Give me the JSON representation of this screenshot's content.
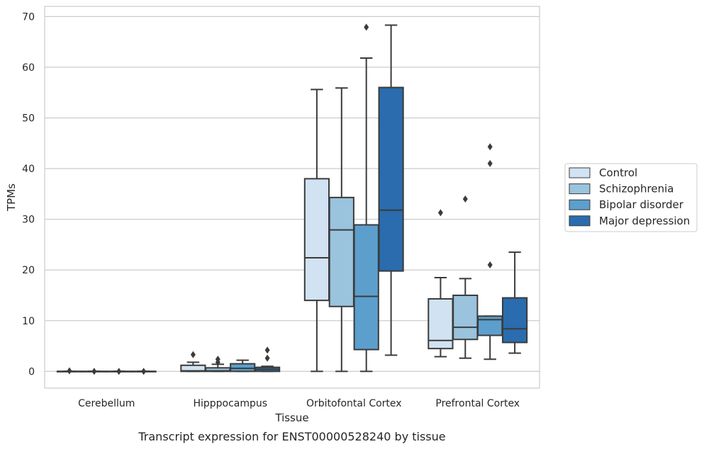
{
  "chart_data": {
    "type": "boxplot",
    "title": "",
    "caption": "Transcript expression for ENST00000528240 by tissue",
    "xlabel": "Tissue",
    "ylabel": "TPMs",
    "ylim": [
      -3.3,
      72
    ],
    "yticks": [
      0,
      10,
      20,
      30,
      40,
      50,
      60,
      70
    ],
    "grid": "horizontal",
    "legend_position": "right",
    "categories": [
      "Cerebellum",
      "Hipppocampus",
      "Orbitofontal Cortex",
      "Prefrontal Cortex"
    ],
    "series": [
      {
        "name": "Control",
        "color": "#d1e2f2",
        "boxes": [
          {
            "whislo": 0,
            "q1": 0,
            "med": 0,
            "q3": 0,
            "whishi": 0,
            "fliers": [
              0.1
            ]
          },
          {
            "whislo": 0,
            "q1": 0,
            "med": 0.1,
            "q3": 1.2,
            "whishi": 1.8,
            "fliers": [
              3.3
            ]
          },
          {
            "whislo": 0,
            "q1": 14,
            "med": 22.4,
            "q3": 38,
            "whishi": 55.6,
            "fliers": []
          },
          {
            "whislo": 2.9,
            "q1": 4.5,
            "med": 6.1,
            "q3": 14.3,
            "whishi": 18.5,
            "fliers": [
              31.3
            ]
          }
        ]
      },
      {
        "name": "Schizophrenia",
        "color": "#9ac3dd",
        "boxes": [
          {
            "whislo": 0,
            "q1": 0,
            "med": 0,
            "q3": 0,
            "whishi": 0,
            "fliers": [
              0
            ]
          },
          {
            "whislo": 0,
            "q1": 0,
            "med": 0.1,
            "q3": 0.7,
            "whishi": 1.4,
            "fliers": [
              1.8,
              2.4
            ]
          },
          {
            "whislo": 0,
            "q1": 12.8,
            "med": 27.9,
            "q3": 34.3,
            "whishi": 55.9,
            "fliers": []
          },
          {
            "whislo": 2.6,
            "q1": 6.3,
            "med": 8.7,
            "q3": 15,
            "whishi": 18.3,
            "fliers": [
              34
            ]
          }
        ]
      },
      {
        "name": "Bipolar disorder",
        "color": "#5c9fcc",
        "boxes": [
          {
            "whislo": 0,
            "q1": 0,
            "med": 0,
            "q3": 0,
            "whishi": 0,
            "fliers": [
              0
            ]
          },
          {
            "whislo": 0,
            "q1": 0,
            "med": 0.6,
            "q3": 1.5,
            "whishi": 2.2,
            "fliers": []
          },
          {
            "whislo": 0,
            "q1": 4.3,
            "med": 14.8,
            "q3": 28.9,
            "whishi": 61.8,
            "fliers": [
              67.9
            ]
          },
          {
            "whislo": 2.4,
            "q1": 7.1,
            "med": 10.2,
            "q3": 10.9,
            "whishi": 10.9,
            "fliers": [
              21,
              41,
              44.3
            ]
          }
        ]
      },
      {
        "name": "Major depression",
        "color": "#2a6cad",
        "boxes": [
          {
            "whislo": 0,
            "q1": 0,
            "med": 0,
            "q3": 0,
            "whishi": 0,
            "fliers": [
              0
            ]
          },
          {
            "whislo": 0,
            "q1": 0,
            "med": 0.4,
            "q3": 0.8,
            "whishi": 1,
            "fliers": [
              2.6,
              4.2
            ]
          },
          {
            "whislo": 3.2,
            "q1": 19.8,
            "med": 31.8,
            "q3": 56,
            "whishi": 68.3,
            "fliers": []
          },
          {
            "whislo": 3.6,
            "q1": 5.7,
            "med": 8.4,
            "q3": 14.5,
            "whishi": 23.5,
            "fliers": []
          }
        ]
      }
    ]
  }
}
